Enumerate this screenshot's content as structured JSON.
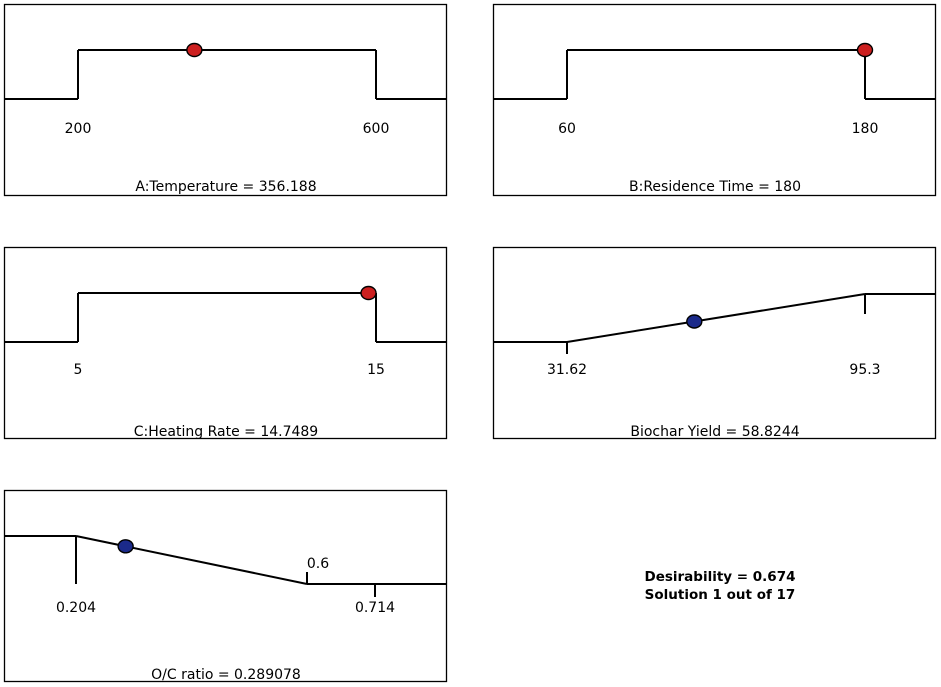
{
  "colors": {
    "factor_point": "#cc1f1f",
    "response_point": "#1b2a8a",
    "line": "#000000"
  },
  "chart_data": [
    {
      "type": "line",
      "panel": "temperature",
      "caption": "A:Temperature = 356.188",
      "min_label": "200",
      "max_label": "600",
      "min": 200,
      "max": 600,
      "value": 356.188,
      "shape": "range",
      "point_kind": "factor"
    },
    {
      "type": "line",
      "panel": "residence-time",
      "caption": "B:Residence Time = 180",
      "min_label": "60",
      "max_label": "180",
      "min": 60,
      "max": 180,
      "value": 180,
      "shape": "range",
      "point_kind": "factor"
    },
    {
      "type": "line",
      "panel": "heating-rate",
      "caption": "C:Heating Rate = 14.7489",
      "min_label": "5",
      "max_label": "15",
      "min": 5,
      "max": 15,
      "value": 14.7489,
      "shape": "range",
      "point_kind": "factor"
    },
    {
      "type": "line",
      "panel": "biochar-yield",
      "caption": "Biochar Yield = 58.8244",
      "min_label": "31.62",
      "max_label": "95.3",
      "min": 31.62,
      "max": 95.3,
      "value": 58.8244,
      "shape": "maximize",
      "point_kind": "response"
    },
    {
      "type": "line",
      "panel": "oc-ratio",
      "caption": "O/C ratio = 0.289078",
      "min_label": "0.204",
      "mid_label": "0.6",
      "max_label": "0.714",
      "min": 0.204,
      "mid": 0.6,
      "max": 0.714,
      "value": 0.289078,
      "shape": "minimize",
      "point_kind": "response"
    }
  ],
  "summary": {
    "desirability": "Desirability = 0.674",
    "solution": "Solution 1 out of 17"
  }
}
